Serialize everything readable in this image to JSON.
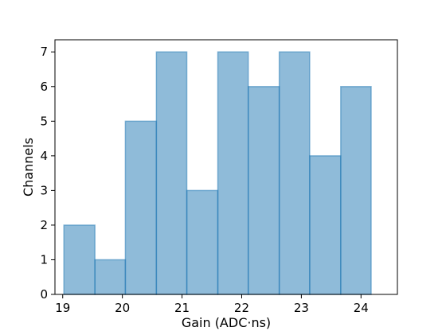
{
  "chart_data": {
    "type": "bar",
    "title": "",
    "xlabel": "Gain (ADC·ns)",
    "ylabel": "Channels",
    "xlim": [
      18.87,
      24.61
    ],
    "ylim": [
      0,
      7.35
    ],
    "bin_edges": [
      19.02,
      19.54,
      20.05,
      20.57,
      21.08,
      21.6,
      22.11,
      22.63,
      23.14,
      23.66,
      24.17
    ],
    "values": [
      2,
      1,
      5,
      7,
      3,
      7,
      6,
      7,
      4,
      6
    ],
    "x_ticks": [
      "19",
      "20",
      "21",
      "22",
      "23",
      "24"
    ],
    "y_ticks": [
      "0",
      "1",
      "2",
      "3",
      "4",
      "5",
      "6",
      "7"
    ],
    "grid": false,
    "bar_color": "#1f77b4"
  }
}
